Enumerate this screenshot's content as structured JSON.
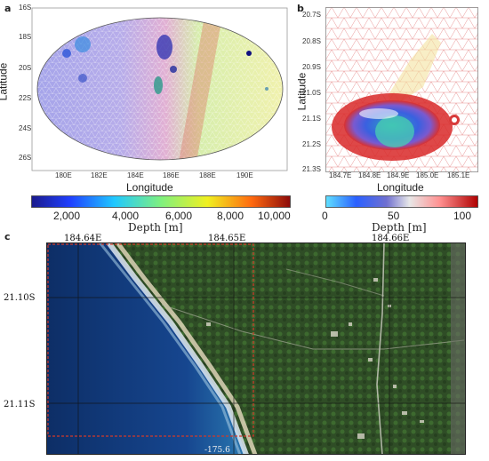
{
  "panel_a": {
    "label": "a",
    "y_ticks": [
      "16S",
      "18S",
      "20S",
      "22S",
      "24S",
      "26S"
    ],
    "x_ticks": [
      "180E",
      "182E",
      "184E",
      "186E",
      "188E",
      "190E"
    ],
    "xlabel": "Longitude",
    "ylabel": "Latitude"
  },
  "panel_b": {
    "label": "b",
    "y_ticks": [
      "20.7S",
      "20.8S",
      "20.9S",
      "21.0S",
      "21.1S",
      "21.2S",
      "21.3S"
    ],
    "x_ticks": [
      "184.7E",
      "184.8E",
      "184.9E",
      "185.0E",
      "185.1E"
    ],
    "xlabel": "Longitude",
    "ylabel": "Latitude"
  },
  "colorbar_a": {
    "ticks": [
      "2,000",
      "4,000",
      "6,000",
      "8,000",
      "10,000"
    ],
    "title": "Depth [m]"
  },
  "colorbar_b": {
    "ticks": [
      "0",
      "50",
      "100"
    ],
    "title": "Depth [m]"
  },
  "panel_c": {
    "label": "c",
    "x_ticks": [
      "184.64E",
      "184.65E",
      "184.66E"
    ],
    "y_ticks": [
      "21.10S",
      "21.11S"
    ],
    "bottom_text": "-175.6"
  },
  "colors": {
    "mesh_blue": "#3a3adf",
    "mesh_red": "#d02020",
    "ocean": "#123a7a",
    "land": "#2d4a24",
    "inset_box": "#d23a2a"
  }
}
